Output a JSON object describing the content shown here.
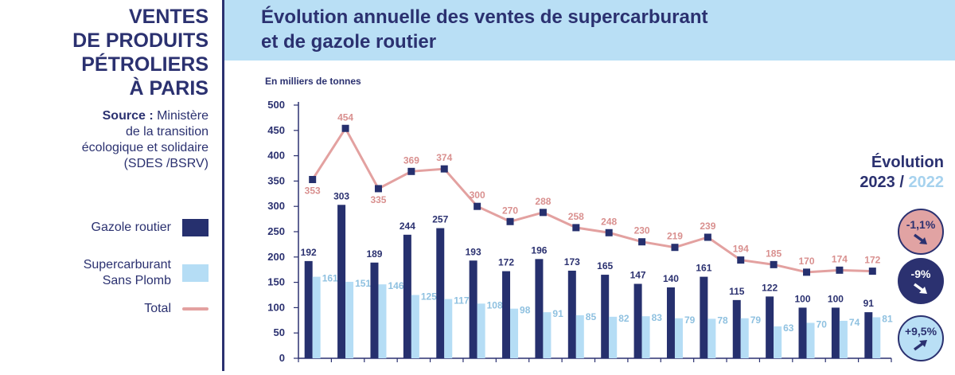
{
  "sidebar": {
    "title_lines": [
      "VENTES",
      "DE PRODUITS",
      "PÉTROLIERS",
      "À PARIS"
    ],
    "source_label": "Source :",
    "source_lines": [
      "Ministère",
      "de la transition",
      "écologique et solidaire",
      "(SDES /BSRV)"
    ],
    "legend": {
      "gazole": "Gazole routier",
      "super_line1": "Supercarburant",
      "super_line2": "Sans Plomb",
      "total": "Total"
    }
  },
  "header": {
    "title_line1": "Évolution annuelle des ventes de supercarburant",
    "title_line2": "et de gazole routier"
  },
  "evolution": {
    "title": "Évolution",
    "year_a": "2023",
    "separator": "/",
    "year_b": "2022",
    "badges": {
      "total": "-1,1%",
      "gazole": "-9%",
      "super": "+9,5%"
    }
  },
  "colors": {
    "gazole": "#26306e",
    "super": "#b5ddf5",
    "total": "#e3a1a0",
    "total_label": "#d9908f",
    "super_label": "#8fc1e0",
    "navy": "#2b3170"
  },
  "chart_data": {
    "type": "bar",
    "ylabel": "En milliers de tonnes",
    "ylim": [
      0,
      500
    ],
    "yticks": [
      0,
      50,
      100,
      150,
      200,
      250,
      300,
      350,
      400,
      450,
      500
    ],
    "ytick_labels": [
      "0",
      "50",
      "100",
      "150",
      "200",
      "250",
      "300",
      "350",
      "400",
      "450",
      "500"
    ],
    "legend_position": "left",
    "series": [
      {
        "name": "Gazole routier",
        "type": "bar",
        "values": [
          192,
          303,
          189,
          244,
          257,
          193,
          172,
          196,
          173,
          165,
          147,
          140,
          161,
          115,
          122,
          100,
          100,
          91
        ]
      },
      {
        "name": "Supercarburant Sans Plomb",
        "type": "bar",
        "values": [
          161,
          151,
          146,
          125,
          117,
          108,
          98,
          91,
          85,
          82,
          83,
          79,
          78,
          79,
          63,
          70,
          74,
          81
        ]
      },
      {
        "name": "Total",
        "type": "line",
        "values": [
          353,
          454,
          335,
          369,
          374,
          300,
          270,
          288,
          258,
          248,
          230,
          219,
          239,
          194,
          185,
          170,
          174,
          172
        ]
      }
    ]
  }
}
